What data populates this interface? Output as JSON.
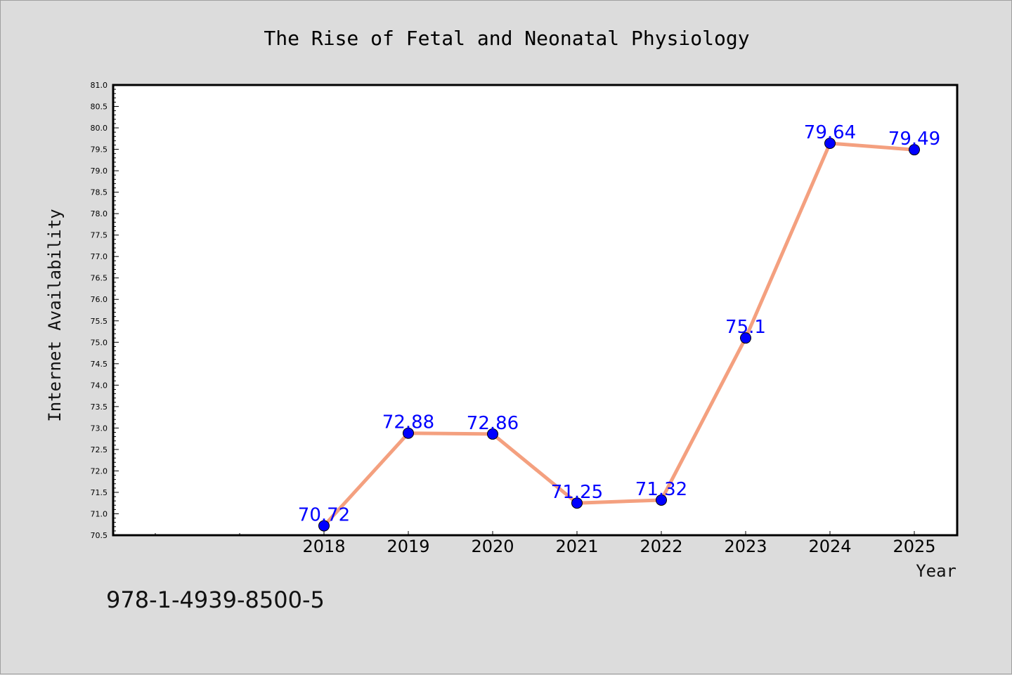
{
  "chart_data": {
    "type": "line",
    "title": "The Rise of Fetal and Neonatal Physiology",
    "xlabel": "Year",
    "ylabel": "Internet Availability",
    "x": [
      "2018",
      "2019",
      "2020",
      "2021",
      "2022",
      "2023",
      "2024",
      "2025"
    ],
    "series": [
      {
        "values": [
          70.72,
          72.88,
          72.86,
          71.25,
          71.32,
          75.1,
          79.64,
          79.49
        ],
        "labels": [
          "70.72",
          "72.88",
          "72.86",
          "71.25",
          "71.32",
          "75.1",
          "79.64",
          "79.49"
        ]
      }
    ],
    "ylim": [
      70.5,
      81.0
    ],
    "yticks": [
      "70.5",
      "71.0",
      "71.5",
      "72.0",
      "72.5",
      "73.0",
      "73.5",
      "74.0",
      "74.5",
      "75.0",
      "75.5",
      "76.0",
      "76.5",
      "77.0",
      "77.5",
      "78.0",
      "78.5",
      "79.0",
      "79.5",
      "80.0",
      "80.5",
      "81.0"
    ],
    "grid": false,
    "colors": {
      "line": "#f4a07f",
      "marker": "#0000ff",
      "data_label": "#0000ff",
      "background": "#dcdcdc",
      "plot_background": "#ffffff"
    }
  },
  "footer": {
    "isbn": "978-1-4939-8500-5"
  }
}
